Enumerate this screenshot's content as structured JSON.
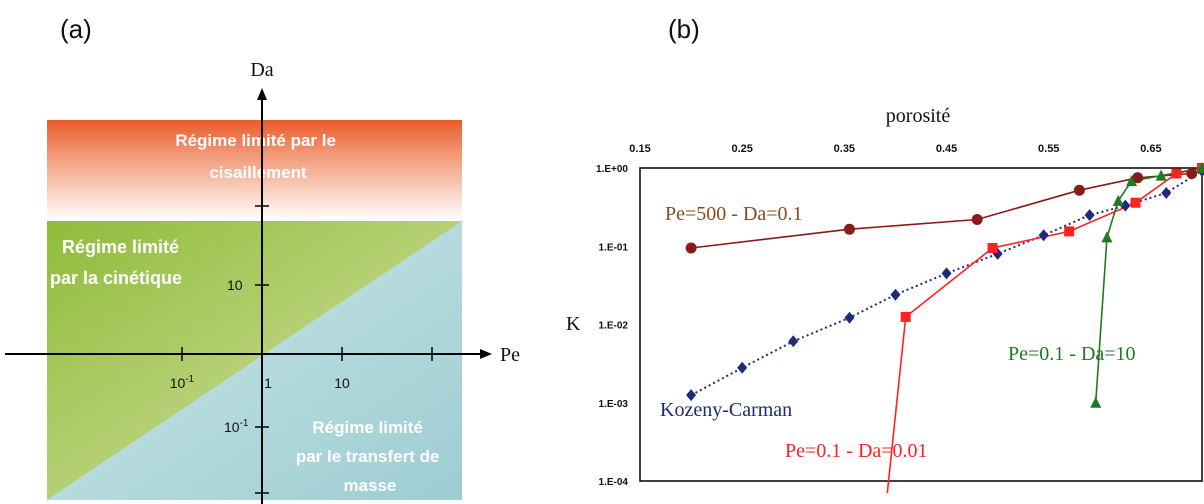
{
  "panel_a": {
    "label": "(a)",
    "y_axis_label": "Da",
    "x_axis_label": "Pe",
    "regions": {
      "shear": "Régime limité par le cisaillement",
      "kinetic": "Régime limité par la cinétique",
      "mass_transfer": "Régime limité par le transfert de masse"
    },
    "x_ticks": [
      {
        "base": "10",
        "exp": "-1"
      },
      {
        "base": "1",
        "exp": ""
      },
      {
        "base": "10",
        "exp": ""
      }
    ],
    "y_ticks": [
      {
        "base": "10",
        "exp": ""
      },
      {
        "base": "10",
        "exp": "-1"
      }
    ]
  },
  "panel_b": {
    "label": "(b)",
    "top_axis_label": "porosité",
    "y_axis_label": "K",
    "annotations": {
      "pe500": "Pe=500 - Da=0.1",
      "kc": "Kozeny-Carman",
      "pe01_da001": "Pe=0.1 - Da=0.01",
      "pe01_da10": "Pe=0.1 - Da=10"
    }
  },
  "chart_data": {
    "type": "line",
    "xlabel": "porosité",
    "ylabel": "K",
    "xlim": [
      0.15,
      0.7
    ],
    "ylim": [
      0.0001,
      1
    ],
    "y_scale": "log",
    "x_ticks": [
      "0.15",
      "0.25",
      "0.35",
      "0.45",
      "0.55",
      "0.65"
    ],
    "y_ticks": [
      "1.E+00",
      "1.E-01",
      "1.E-02",
      "1.E-03",
      "1.E-04"
    ],
    "colors": {
      "pe500": "#8b1a1a",
      "kc": "#1f2a7a",
      "da001": "#ff2222",
      "da10": "#1f7a1f"
    },
    "series": [
      {
        "key": "pe500",
        "name": "Pe=500 - Da=0.1",
        "marker": "circle",
        "line": "solid",
        "x": [
          0.2,
          0.355,
          0.48,
          0.58,
          0.637,
          0.69
        ],
        "y": [
          0.095,
          0.165,
          0.22,
          0.52,
          0.75,
          0.85
        ]
      },
      {
        "key": "kc",
        "name": "Kozeny-Carman",
        "marker": "diamond",
        "line": "dotted",
        "x": [
          0.2,
          0.25,
          0.3,
          0.355,
          0.4,
          0.45,
          0.5,
          0.545,
          0.59,
          0.625,
          0.665,
          0.7
        ],
        "y": [
          0.00125,
          0.0028,
          0.0061,
          0.0122,
          0.024,
          0.045,
          0.08,
          0.138,
          0.25,
          0.33,
          0.48,
          0.92
        ]
      },
      {
        "key": "da001",
        "name": "Pe=0.1 - Da=0.01",
        "marker": "square",
        "line": "solid",
        "x": [
          0.392,
          0.41,
          0.495,
          0.57,
          0.635,
          0.675,
          0.7
        ],
        "y": [
          6.3e-05,
          0.0125,
          0.095,
          0.155,
          0.36,
          0.85,
          1.0
        ]
      },
      {
        "key": "da10",
        "name": "Pe=0.1 - Da=10",
        "marker": "triangle",
        "line": "solid",
        "x": [
          0.596,
          0.607,
          0.618,
          0.631,
          0.66,
          0.7
        ],
        "y": [
          0.001,
          0.13,
          0.38,
          0.68,
          0.8,
          1.0
        ]
      }
    ]
  }
}
